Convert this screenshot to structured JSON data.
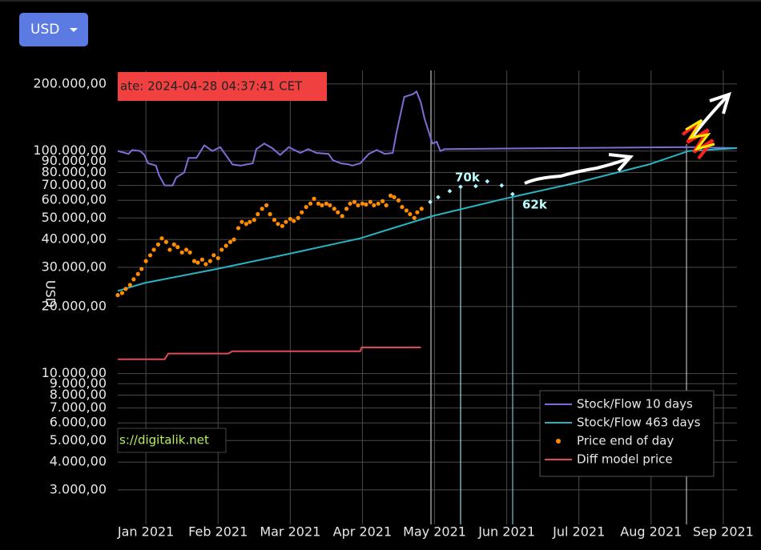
{
  "currency": "USD",
  "chart_data": {
    "type": "line",
    "y_label": "USD",
    "date_label": "ate: 2024-04-28 04:37:41 CET",
    "url_label": "s://digitalik.net",
    "annotations": [
      "70k",
      "62k"
    ],
    "log_y": true,
    "grid": true,
    "legend": "lower right",
    "xlim": [
      -0.39,
      8.19
    ],
    "xticks": [
      {
        "value": 0,
        "label": "Jan 2021"
      },
      {
        "value": 1,
        "label": "Feb 2021"
      },
      {
        "value": 2,
        "label": "Mar 2021"
      },
      {
        "value": 3,
        "label": "Apr 2021"
      },
      {
        "value": 4,
        "label": "May 2021"
      },
      {
        "value": 5,
        "label": "Jun 2021"
      },
      {
        "value": 6,
        "label": "Jul 2021"
      },
      {
        "value": 7,
        "label": "Aug 2021"
      },
      {
        "value": 8,
        "label": "Sep 2021"
      }
    ],
    "ylim": [
      2100,
      230000
    ],
    "yticks": [
      {
        "value": 3000,
        "label": "3.000,00"
      },
      {
        "value": 4000,
        "label": "4.000,00"
      },
      {
        "value": 5000,
        "label": "5.000,00"
      },
      {
        "value": 6000,
        "label": "6.000,00"
      },
      {
        "value": 7000,
        "label": "7.000,00"
      },
      {
        "value": 8000,
        "label": "8.000,00"
      },
      {
        "value": 9000,
        "label": "9.000,00"
      },
      {
        "value": 10000,
        "label": "10.000,00"
      },
      {
        "value": 20000,
        "label": "20.000,00"
      },
      {
        "value": 30000,
        "label": "30.000,00"
      },
      {
        "value": 40000,
        "label": "40.000,00"
      },
      {
        "value": 50000,
        "label": "50.000,00"
      },
      {
        "value": 60000,
        "label": "60.000,00"
      },
      {
        "value": 70000,
        "label": "70.000,00"
      },
      {
        "value": 80000,
        "label": "80.000,00"
      },
      {
        "value": 90000,
        "label": "90.000,00"
      },
      {
        "value": 100000,
        "label": "100.000,00"
      },
      {
        "value": 200000,
        "label": "200.000,00"
      }
    ],
    "series": [
      {
        "name": "Stock/Flow 10 days",
        "color": "#7b6fd6",
        "style": "line",
        "x": [
          -0.39,
          -0.24,
          -0.19,
          -0.08,
          -0.02,
          0.03,
          0.14,
          0.18,
          0.26,
          0.37,
          0.42,
          0.53,
          0.59,
          0.7,
          0.81,
          0.92,
          1.03,
          1.2,
          1.31,
          1.48,
          1.53,
          1.64,
          1.75,
          1.86,
          1.98,
          2.14,
          2.25,
          2.36,
          2.53,
          2.59,
          2.7,
          2.81,
          2.86,
          2.97,
          3.09,
          3.2,
          3.31,
          3.42,
          3.47,
          3.58,
          3.7,
          3.75,
          3.81,
          3.86,
          3.97,
          4.03,
          4.08,
          4.14,
          5.75,
          7.52,
          8.19
        ],
        "values": [
          100000,
          97000,
          101000,
          100000,
          96000,
          88000,
          86000,
          78000,
          70000,
          70000,
          76000,
          80000,
          93000,
          93000,
          106000,
          100000,
          104000,
          87000,
          86000,
          88000,
          102000,
          108000,
          103000,
          96000,
          104000,
          98000,
          102000,
          98000,
          97000,
          91000,
          88000,
          87000,
          86000,
          88000,
          97000,
          101000,
          97000,
          98000,
          120000,
          175000,
          180000,
          185000,
          165000,
          140000,
          108000,
          110000,
          100000,
          102000,
          103000,
          104000,
          103000
        ]
      },
      {
        "name": "Stock/Flow 463 days",
        "color": "#28b4c4",
        "style": "line",
        "x": [
          -0.39,
          -0.02,
          0.98,
          1.98,
          2.97,
          3.42,
          3.97,
          4.97,
          5.97,
          6.97,
          7.52,
          8.19
        ],
        "values": [
          23500,
          25500,
          29500,
          34500,
          40500,
          45000,
          51000,
          61000,
          72000,
          87000,
          100000,
          103000
        ]
      },
      {
        "name": "Price end of day",
        "color": "#ff8c00",
        "style": "dots",
        "x": [
          -0.39,
          -0.33,
          -0.28,
          -0.22,
          -0.17,
          -0.11,
          -0.06,
          0.0,
          0.06,
          0.11,
          0.17,
          0.22,
          0.28,
          0.33,
          0.39,
          0.44,
          0.5,
          0.56,
          0.61,
          0.67,
          0.72,
          0.78,
          0.83,
          0.89,
          0.94,
          1.0,
          1.05,
          1.11,
          1.17,
          1.22,
          1.28,
          1.33,
          1.39,
          1.44,
          1.5,
          1.55,
          1.61,
          1.67,
          1.72,
          1.78,
          1.83,
          1.89,
          1.94,
          2.0,
          2.05,
          2.11,
          2.16,
          2.22,
          2.28,
          2.33,
          2.39,
          2.44,
          2.5,
          2.55,
          2.61,
          2.66,
          2.72,
          2.78,
          2.83,
          2.89,
          2.94,
          3.0,
          3.05,
          3.11,
          3.16,
          3.22,
          3.28,
          3.33,
          3.39,
          3.44,
          3.5,
          3.55,
          3.61,
          3.66,
          3.72,
          3.76,
          3.82
        ],
        "values": [
          22500,
          23000,
          24000,
          25000,
          26500,
          28000,
          29500,
          32000,
          34000,
          36000,
          38000,
          40500,
          39000,
          36000,
          38000,
          37000,
          35000,
          36000,
          35000,
          32000,
          31500,
          32500,
          31000,
          32000,
          34000,
          33000,
          36000,
          37500,
          39000,
          40000,
          45000,
          48000,
          47000,
          48000,
          49000,
          52000,
          55000,
          57000,
          52000,
          49000,
          47000,
          46000,
          48000,
          49500,
          48500,
          50000,
          53000,
          56000,
          58000,
          61000,
          58000,
          57000,
          58000,
          57000,
          55000,
          53000,
          51000,
          55000,
          58000,
          59000,
          57000,
          58000,
          57500,
          59000,
          57000,
          58000,
          59500,
          57000,
          63000,
          62000,
          60000,
          56000,
          54000,
          52000,
          50000,
          53000,
          55000
        ]
      },
      {
        "name": "Diff model price",
        "color": "#e04a58",
        "style": "line",
        "x": [
          -0.39,
          0.26,
          0.31,
          1.14,
          1.2,
          2.97,
          2.99,
          3.81
        ],
        "values": [
          11600,
          11600,
          12300,
          12300,
          12600,
          12600,
          13100,
          13100
        ]
      }
    ],
    "annotation_points": {
      "color": "#aaf4ff",
      "x": [
        3.94,
        4.05,
        4.21,
        4.36,
        4.57,
        4.73,
        4.93,
        5.08
      ],
      "values": [
        59000,
        62000,
        66000,
        69000,
        69500,
        73000,
        70000,
        64000
      ]
    }
  }
}
